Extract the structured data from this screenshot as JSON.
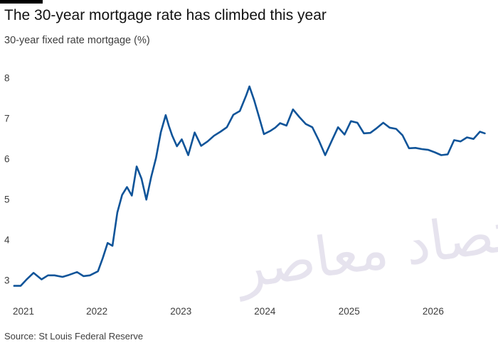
{
  "header": {
    "title": "The 30-year mortgage rate has climbed this year",
    "subtitle": "30-year fixed rate mortgage (%)"
  },
  "footer": {
    "source": "Source: St Louis Federal Reserve"
  },
  "watermark": {
    "text": "اقتصاد معاصر"
  },
  "colors": {
    "line": "#0f5499",
    "axis_text": "#3d3d3d",
    "background": "#ffffff"
  },
  "chart_data": {
    "type": "line",
    "title": "The 30-year mortgage rate has climbed this year",
    "ylabel": "30-year fixed rate mortgage (%)",
    "xlabel": "",
    "x_ticks": [
      "2021",
      "2022",
      "2023",
      "2024",
      "2025",
      "2026"
    ],
    "y_ticks": [
      3,
      4,
      5,
      6,
      7,
      8
    ],
    "ylim": [
      2.8,
      8.1
    ],
    "xlim": [
      "2021-01-01",
      "2026-08-15"
    ],
    "grid": false,
    "legend": "none",
    "series": [
      {
        "points": [
          [
            "2021-01-07",
            2.86
          ],
          [
            "2021-02-04",
            2.86
          ],
          [
            "2021-03-04",
            3.03
          ],
          [
            "2021-04-01",
            3.18
          ],
          [
            "2021-05-06",
            3.02
          ],
          [
            "2021-06-03",
            3.12
          ],
          [
            "2021-07-01",
            3.12
          ],
          [
            "2021-08-05",
            3.08
          ],
          [
            "2021-09-02",
            3.13
          ],
          [
            "2021-10-07",
            3.2
          ],
          [
            "2021-11-04",
            3.1
          ],
          [
            "2021-12-02",
            3.12
          ],
          [
            "2022-01-06",
            3.22
          ],
          [
            "2022-01-27",
            3.55
          ],
          [
            "2022-02-17",
            3.92
          ],
          [
            "2022-03-10",
            3.85
          ],
          [
            "2022-03-31",
            4.67
          ],
          [
            "2022-04-21",
            5.11
          ],
          [
            "2022-05-12",
            5.3
          ],
          [
            "2022-06-02",
            5.09
          ],
          [
            "2022-06-23",
            5.81
          ],
          [
            "2022-07-14",
            5.51
          ],
          [
            "2022-08-04",
            4.99
          ],
          [
            "2022-08-25",
            5.55
          ],
          [
            "2022-09-15",
            6.02
          ],
          [
            "2022-10-06",
            6.66
          ],
          [
            "2022-10-27",
            7.08
          ],
          [
            "2022-11-10",
            6.81
          ],
          [
            "2022-11-24",
            6.58
          ],
          [
            "2022-12-15",
            6.31
          ],
          [
            "2023-01-05",
            6.48
          ],
          [
            "2023-02-02",
            6.09
          ],
          [
            "2023-03-02",
            6.65
          ],
          [
            "2023-03-30",
            6.32
          ],
          [
            "2023-04-27",
            6.43
          ],
          [
            "2023-05-25",
            6.57
          ],
          [
            "2023-06-22",
            6.67
          ],
          [
            "2023-07-20",
            6.78
          ],
          [
            "2023-08-17",
            7.09
          ],
          [
            "2023-09-14",
            7.18
          ],
          [
            "2023-10-12",
            7.57
          ],
          [
            "2023-10-26",
            7.79
          ],
          [
            "2023-11-16",
            7.44
          ],
          [
            "2023-12-07",
            7.03
          ],
          [
            "2023-12-28",
            6.61
          ],
          [
            "2024-01-25",
            6.69
          ],
          [
            "2024-02-15",
            6.77
          ],
          [
            "2024-03-07",
            6.88
          ],
          [
            "2024-04-04",
            6.82
          ],
          [
            "2024-05-02",
            7.22
          ],
          [
            "2024-05-30",
            7.03
          ],
          [
            "2024-06-27",
            6.86
          ],
          [
            "2024-07-25",
            6.78
          ],
          [
            "2024-08-22",
            6.46
          ],
          [
            "2024-09-19",
            6.09
          ],
          [
            "2024-10-17",
            6.44
          ],
          [
            "2024-11-14",
            6.78
          ],
          [
            "2024-12-12",
            6.6
          ],
          [
            "2025-01-09",
            6.93
          ],
          [
            "2025-02-06",
            6.89
          ],
          [
            "2025-03-06",
            6.63
          ],
          [
            "2025-04-03",
            6.64
          ],
          [
            "2025-05-01",
            6.76
          ],
          [
            "2025-05-29",
            6.89
          ],
          [
            "2025-06-26",
            6.77
          ],
          [
            "2025-07-24",
            6.74
          ],
          [
            "2025-08-21",
            6.58
          ],
          [
            "2025-09-18",
            6.26
          ],
          [
            "2025-10-16",
            6.27
          ],
          [
            "2025-11-13",
            6.24
          ],
          [
            "2025-12-11",
            6.22
          ],
          [
            "2026-01-08",
            6.16
          ],
          [
            "2026-02-05",
            6.09
          ],
          [
            "2026-03-05",
            6.11
          ],
          [
            "2026-04-02",
            6.46
          ],
          [
            "2026-04-30",
            6.43
          ],
          [
            "2026-05-28",
            6.53
          ],
          [
            "2026-06-25",
            6.49
          ],
          [
            "2026-07-23",
            6.67
          ],
          [
            "2026-08-13",
            6.63
          ]
        ]
      }
    ]
  }
}
